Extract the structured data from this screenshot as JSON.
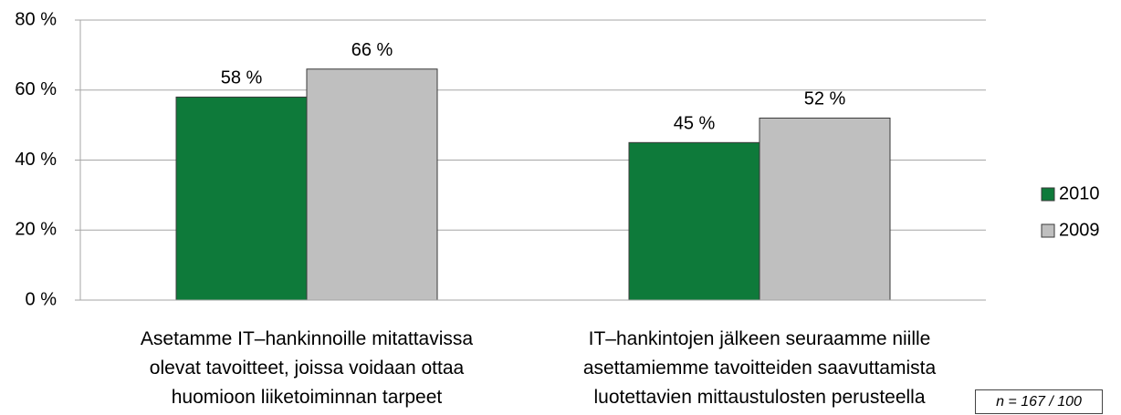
{
  "chart_data": {
    "type": "bar",
    "categories": [
      "Asetamme IT–hankinnoille  mitattavissa\nolevat tavoitteet, joissa voidaan ottaa\nhuomioon liiketoiminnan tarpeet",
      "IT–hankintojen jälkeen seuraamme niille\nasettamiemme tavoitteiden saavuttamista\nluotettavien mittaustulosten perusteella"
    ],
    "series": [
      {
        "name": "2010",
        "color": "#0e7a3a",
        "values": [
          58,
          45
        ],
        "value_labels": [
          "58 %",
          "45 %"
        ]
      },
      {
        "name": "2009",
        "color": "#bfbfbf",
        "values": [
          66,
          52
        ],
        "value_labels": [
          "66 %",
          "52 %"
        ]
      }
    ],
    "ylim": [
      0,
      80
    ],
    "yticks": [
      {
        "value": 0,
        "label": "0 %"
      },
      {
        "value": 20,
        "label": "20 %"
      },
      {
        "value": 40,
        "label": "40 %"
      },
      {
        "value": 60,
        "label": "60 %"
      },
      {
        "value": 80,
        "label": "80 %"
      }
    ],
    "grid": true,
    "legend": "right",
    "annotation": "n = 167 / 100"
  }
}
